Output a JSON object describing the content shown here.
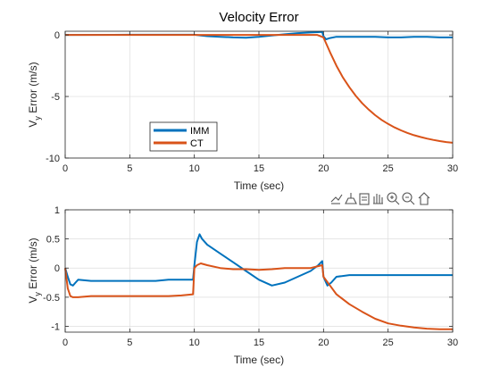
{
  "colors": {
    "imm": "#0072BD",
    "ct": "#D95319",
    "grid": "#dedede",
    "axis": "#262626",
    "background": "#ffffff"
  },
  "toolbar": {
    "icons": [
      "export-icon",
      "brush-icon",
      "data-tips-icon",
      "pan-icon",
      "zoom-in-icon",
      "zoom-out-icon",
      "home-icon"
    ]
  },
  "chart_data": [
    {
      "type": "line",
      "title": "Velocity Error",
      "xlabel": "Time (sec)",
      "ylabel_main": "V",
      "ylabel_sub": "y",
      "ylabel_rest": " Error (m/s)",
      "xlim": [
        0,
        30
      ],
      "ylim": [
        -10,
        0.3
      ],
      "xticks": [
        0,
        5,
        10,
        15,
        20,
        25,
        30
      ],
      "xticklabels": [
        "0",
        "5",
        "10",
        "15",
        "20",
        "25",
        "30"
      ],
      "yticks": [
        -10,
        -5,
        0
      ],
      "yticklabels": [
        "-10",
        "-5",
        "0"
      ],
      "grid": true,
      "legend": {
        "placement": "lower-left",
        "entries": [
          "IMM",
          "CT"
        ]
      },
      "series": [
        {
          "name": "IMM",
          "color": "#0072BD",
          "x": [
            0,
            5,
            10,
            10.5,
            11,
            12,
            13,
            14,
            15,
            16,
            17,
            18,
            19,
            19.9,
            20,
            20.2,
            20.5,
            21,
            22,
            23,
            24,
            25,
            26,
            27,
            28,
            29,
            30
          ],
          "y": [
            0,
            0.02,
            0.02,
            -0.05,
            -0.1,
            -0.15,
            -0.2,
            -0.22,
            -0.15,
            -0.05,
            0.05,
            0.15,
            0.2,
            0.25,
            -0.1,
            -0.35,
            -0.25,
            -0.15,
            -0.15,
            -0.15,
            -0.15,
            -0.2,
            -0.2,
            -0.15,
            -0.15,
            -0.2,
            -0.2
          ]
        },
        {
          "name": "CT",
          "color": "#D95319",
          "x": [
            0,
            5,
            10,
            15,
            19.5,
            20,
            20.5,
            21,
            21.5,
            22,
            22.5,
            23,
            23.5,
            24,
            24.5,
            25,
            25.5,
            26,
            26.5,
            27,
            27.5,
            28,
            28.5,
            29,
            29.5,
            30
          ],
          "y": [
            0,
            0,
            0,
            0,
            0,
            -0.2,
            -1.4,
            -2.5,
            -3.45,
            -4.25,
            -4.95,
            -5.55,
            -6.07,
            -6.52,
            -6.9,
            -7.23,
            -7.51,
            -7.75,
            -7.96,
            -8.14,
            -8.29,
            -8.42,
            -8.53,
            -8.62,
            -8.7,
            -8.76
          ]
        }
      ]
    },
    {
      "type": "line",
      "title": "",
      "xlabel": "Time (sec)",
      "ylabel_main": "V",
      "ylabel_sub": "y",
      "ylabel_rest": " Error (m/s)",
      "xlim": [
        0,
        30
      ],
      "ylim": [
        -1.1,
        1
      ],
      "xticks": [
        0,
        5,
        10,
        15,
        20,
        25,
        30
      ],
      "xticklabels": [
        "0",
        "5",
        "10",
        "15",
        "20",
        "25",
        "30"
      ],
      "yticks": [
        -1,
        -0.5,
        0,
        0.5,
        1
      ],
      "yticklabels": [
        "-1",
        "-0.5",
        "0",
        "0.5",
        "1"
      ],
      "grid": true,
      "series": [
        {
          "name": "IMM",
          "color": "#0072BD",
          "x": [
            0,
            0.2,
            0.4,
            0.6,
            0.8,
            1,
            2,
            3,
            4,
            5,
            6,
            7,
            8,
            9,
            9.9,
            10,
            10.2,
            10.4,
            10.6,
            11,
            12,
            13,
            14,
            15,
            16,
            17,
            18,
            19,
            19.6,
            19.9,
            20,
            20.3,
            20.6,
            21,
            22,
            23,
            24,
            25,
            26,
            27,
            28,
            29,
            30
          ],
          "y": [
            0,
            -0.15,
            -0.28,
            -0.3,
            -0.25,
            -0.2,
            -0.22,
            -0.22,
            -0.22,
            -0.22,
            -0.22,
            -0.22,
            -0.2,
            -0.2,
            -0.2,
            0.05,
            0.45,
            0.58,
            0.5,
            0.4,
            0.25,
            0.1,
            -0.05,
            -0.2,
            -0.3,
            -0.25,
            -0.15,
            -0.05,
            0.05,
            0.12,
            -0.15,
            -0.3,
            -0.25,
            -0.15,
            -0.12,
            -0.12,
            -0.12,
            -0.12,
            -0.12,
            -0.12,
            -0.12,
            -0.12,
            -0.12
          ]
        },
        {
          "name": "CT",
          "color": "#D95319",
          "x": [
            0,
            0.2,
            0.4,
            0.6,
            1,
            2,
            3,
            4,
            5,
            6,
            7,
            8,
            9,
            9.9,
            10,
            10.2,
            10.5,
            11,
            12,
            13,
            14,
            15,
            16,
            17,
            18,
            19,
            19.9,
            20,
            20.5,
            21,
            22,
            23,
            24,
            25,
            26,
            27,
            28,
            29,
            30
          ],
          "y": [
            0,
            -0.35,
            -0.48,
            -0.5,
            -0.5,
            -0.48,
            -0.48,
            -0.48,
            -0.48,
            -0.48,
            -0.48,
            -0.48,
            -0.47,
            -0.45,
            0,
            0.05,
            0.08,
            0.05,
            0,
            -0.02,
            -0.02,
            -0.03,
            -0.02,
            0,
            0,
            0,
            0.05,
            -0.15,
            -0.3,
            -0.45,
            -0.62,
            -0.75,
            -0.87,
            -0.95,
            -0.99,
            -1.02,
            -1.04,
            -1.05,
            -1.05
          ]
        }
      ]
    }
  ]
}
